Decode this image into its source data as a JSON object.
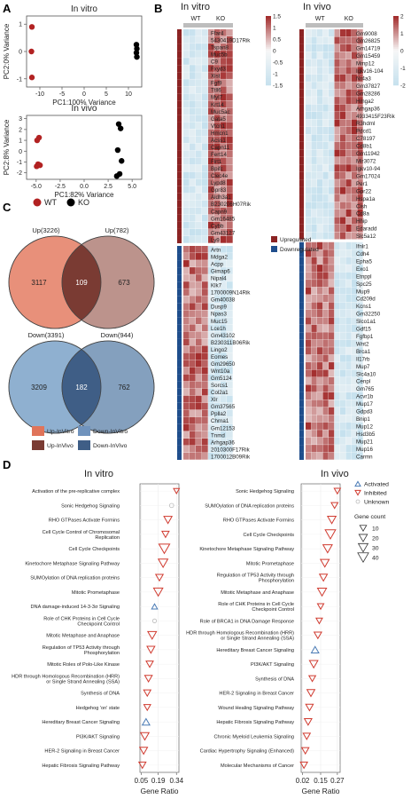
{
  "figure": {
    "panel_letters": [
      "A",
      "B",
      "C",
      "D"
    ]
  },
  "panel_a": {
    "chart_data": [
      {
        "type": "scatter",
        "title": "In vitro",
        "xlabel": "PC1:100% Variance",
        "ylabel": "PC2:0% Variance",
        "xticks": [
          "-10",
          "-5",
          "0",
          "5",
          "10"
        ],
        "yticks": [
          "-1",
          "0",
          "1"
        ],
        "xlim": [
          -13,
          13
        ],
        "ylim": [
          -1.3,
          1.3
        ],
        "series": [
          {
            "name": "WT",
            "color": "#b22222",
            "x": [
              -11.8,
              -11.9,
              -11.8
            ],
            "y": [
              0.9,
              0.0,
              -0.95
            ]
          },
          {
            "name": "KO",
            "color": "#000000",
            "x": [
              11.8,
              11.9,
              11.8,
              11.9
            ],
            "y": [
              0.25,
              0.1,
              -0.05,
              -0.2
            ]
          }
        ]
      },
      {
        "type": "scatter",
        "title": "In vivo",
        "xlabel": "PC1:82% Variance",
        "ylabel": "PC2:8% Variance",
        "xticks": [
          "-5.0",
          "-2.5",
          "0.0",
          "2.5",
          "5.0"
        ],
        "yticks": [
          "-2",
          "-1",
          "0",
          "1",
          "2",
          "3"
        ],
        "xlim": [
          -6,
          6
        ],
        "ylim": [
          -2.6,
          3.3
        ],
        "series": [
          {
            "name": "WT",
            "color": "#b22222",
            "x": [
              -4.9,
              -4.7,
              -4.8,
              -4.95,
              -4.6
            ],
            "y": [
              1.0,
              1.25,
              -1.2,
              -1.4,
              -1.3
            ]
          },
          {
            "name": "KO",
            "color": "#000000",
            "x": [
              3.6,
              3.8,
              3.5,
              3.9,
              3.7,
              3.4
            ],
            "y": [
              2.5,
              2.1,
              0.1,
              -0.9,
              -2.1,
              -2.3
            ]
          }
        ],
        "legend": [
          {
            "label": "WT",
            "color": "#b22222"
          },
          {
            "label": "KO",
            "color": "#000000"
          }
        ]
      }
    ]
  },
  "panel_b": {
    "chart_data": [
      {
        "type": "heatmap",
        "title": "In vitro",
        "groups": [
          "WT",
          "KO"
        ],
        "colorbar_ticks": [
          "1.5",
          "1",
          "0.5",
          "0",
          "-0.5",
          "-1",
          "-1.5"
        ],
        "genes_up": [
          "Ffar4",
          "5430419D17Rik",
          "Tspan8",
          "Muc5b",
          "C9",
          "Fxyd3",
          "Xist",
          "Fgf9",
          "Ttll6",
          "Myl7",
          "Krt14",
          "Muc5ac",
          "Gata5",
          "Vtcn1",
          "Hmcn1",
          "Acss1",
          "Capn11",
          "Fert14",
          "Flrt1",
          "Bpifc",
          "Clec4e",
          "Lypd8",
          "Gpr83",
          "Aldh3a1",
          "B230206H07Rik",
          "Capn9",
          "Gm16485",
          "Cybb",
          "Gm43127",
          "Ly9"
        ],
        "genes_down": [
          "Artn",
          "Mdga2",
          "Acpp",
          "Gimap6",
          "Nipal4",
          "Klk7",
          "1700009N14Rik",
          "Gm40038",
          "Dusp9",
          "Npas3",
          "Muc15",
          "Lce1h",
          "Gm43102",
          "B230311B06Rik",
          "Lingo2",
          "Eomes",
          "Gm29650",
          "Wnt10a",
          "Gm5124",
          "Sorcs1",
          "Col2a1",
          "Xlr",
          "Gm37565",
          "Pplla2",
          "Chrna1",
          "Gm12153",
          "Tnmd",
          "Arhgap36",
          "2010300F17Rik",
          "1700012B09Rik"
        ]
      },
      {
        "type": "heatmap",
        "title": "In vivo",
        "groups": [
          "WT",
          "KO"
        ],
        "colorbar_ticks": [
          "2",
          "1",
          "0",
          "-1",
          "-2"
        ],
        "genes_up": [
          "Gm9008",
          "Gm26825",
          "Gm14719",
          "Gm15459",
          "Mmp12",
          "Igkv16-104",
          "Nr4a3",
          "Gm37827",
          "Gm28286",
          "Hmga2",
          "Arhgap36",
          "4933415F23Rik",
          "R3hdml",
          "Pdcd1",
          "C78197",
          "Cd8b1",
          "Gm11942",
          "Mir3072",
          "Igkv10-94",
          "Gm17024",
          "Per1",
          "Gpr22",
          "Hspa1a",
          "Cish",
          "Cd8a",
          "Hhip",
          "Edaradd",
          "Slc5a12"
        ],
        "genes_down": [
          "Ifnlr1",
          "Cdh4",
          "Epha5",
          "Exo1",
          "Etnppl",
          "Spc25",
          "Mup9",
          "Cd209d",
          "Kcns1",
          "Gm32250",
          "Slco1a1",
          "Gdf15",
          "Fgfbp1",
          "Wnt2",
          "Brca1",
          "Il17rb",
          "Mup7",
          "Slc4a10",
          "Cenpl",
          "Gm765",
          "Acvr1b",
          "Mup17",
          "Gdpd3",
          "Bnip1",
          "Mup12",
          "Hsd3b5",
          "Mup21",
          "Mup16",
          "Carmn"
        ]
      }
    ],
    "legend": [
      {
        "label": "Upregulated",
        "color": "#8b2323"
      },
      {
        "label": "Downregulated",
        "color": "#1f4e8c"
      }
    ]
  },
  "panel_c": {
    "venn_up": {
      "left_label": "Up(3226)",
      "right_label": "Up(782)",
      "left_only": "3117",
      "both": "109",
      "right_only": "673",
      "left_color": "#e8907a",
      "right_color": "#b08078"
    },
    "venn_down": {
      "left_label": "Down(3391)",
      "right_label": "Down(944)",
      "left_only": "3209",
      "both": "182",
      "right_only": "762",
      "left_color": "#8fb0d0",
      "right_color": "#6f8fb3"
    },
    "legend": [
      {
        "label": "Up-InVitro",
        "color": "#e0745a"
      },
      {
        "label": "Down-InVitro",
        "color": "#7093bd"
      },
      {
        "label": "Up-InVivo",
        "color": "#7a3b33"
      },
      {
        "label": "Down-InVivo",
        "color": "#3f5e86"
      }
    ]
  },
  "panel_d": {
    "chart_data": [
      {
        "type": "scatter",
        "title": "In vitro",
        "xlabel": "Gene Ratio",
        "xticks": [
          "0.05",
          "0.19",
          "0.34"
        ],
        "xlim": [
          0.04,
          0.36
        ],
        "categories": [
          "Activation of the pre-replicative complex",
          "Sonic Hedgehog Signaling",
          "RHO GTPases Activate Formins",
          "Cell Cycle Control of Chromosomal Replication",
          "Cell Cycle Checkpoints",
          "Kinetochore Metaphase Signaling Pathway",
          "SUMOylation of DNA replication proteins",
          "Mitotic Prometaphase",
          "DNA damage-induced 14-3-3σ Signaling",
          "Role of CHK Proteins in Cell Cycle Checkpoint Control",
          "Mitotic Metaphase and Anaphase",
          "Regulation of TP53 Activity through Phosphorylation",
          "Mitotic Roles of Polo-Like Kinase",
          "HDR through Homologous Recombination (HRR) or Single Strand Annealing (SSA)",
          "Synthesis of DNA",
          "Hedgehog 'on' state",
          "Hereditary Breast Cancer Signaling",
          "PI3K/AKT Signaling",
          "HER-2 Signaling in Breast Cancer",
          "Hepatic Fibrosis Signaling Pathway"
        ],
        "x": [
          0.34,
          0.3,
          0.27,
          0.25,
          0.24,
          0.23,
          0.2,
          0.19,
          0.16,
          0.16,
          0.14,
          0.13,
          0.12,
          0.11,
          0.1,
          0.1,
          0.09,
          0.08,
          0.07,
          0.06
        ],
        "size": [
          6,
          8,
          18,
          12,
          40,
          28,
          14,
          26,
          6,
          6,
          22,
          16,
          12,
          14,
          12,
          10,
          14,
          20,
          16,
          12
        ],
        "status": [
          "Inhibited",
          "Unknown",
          "Inhibited",
          "Inhibited",
          "Inhibited",
          "Inhibited",
          "Inhibited",
          "Inhibited",
          "Activated",
          "Unknown",
          "Inhibited",
          "Inhibited",
          "Inhibited",
          "Inhibited",
          "Inhibited",
          "Inhibited",
          "Activated",
          "Inhibited",
          "Inhibited",
          "Inhibited"
        ]
      },
      {
        "type": "scatter",
        "title": "In vivo",
        "xlabel": "Gene Ratio",
        "xticks": [
          "0.02",
          "0.15",
          "0.27"
        ],
        "xlim": [
          0.01,
          0.29
        ],
        "categories": [
          "Sonic Hedgehog Signaling",
          "SUMOylation of DNA replication proteins",
          "RHO GTPases Activate Formins",
          "Cell Cycle Checkpoints",
          "Kinetochore Metaphase Signaling Pathway",
          "Mitotic Prometaphase",
          "Regulation of TP53 Activity through Phosphorylation",
          "Mitotic Metaphase and Anaphase",
          "Role of CHK Proteins in Cell Cycle Checkpoint Control",
          "Role of BRCA1 in DNA Damage Response",
          "HDR through Homologous Recombination (HRR) or Single Strand Annealing (SSA)",
          "Hereditary Breast Cancer Signaling",
          "PI3K/AKT Signaling",
          "Synthesis of DNA",
          "HER-2 Signaling in Breast Cancer",
          "Wound Healing Signaling Pathway",
          "Hepatic Fibrosis Signaling Pathway",
          "Chronic Myeloid Leukemia Signaling",
          "Cardiac Hypertrophy Signaling (Enhanced)",
          "Molecular Mechanisms of Cancer"
        ],
        "x": [
          0.27,
          0.25,
          0.23,
          0.22,
          0.2,
          0.18,
          0.17,
          0.16,
          0.15,
          0.14,
          0.13,
          0.11,
          0.1,
          0.09,
          0.08,
          0.07,
          0.06,
          0.05,
          0.04,
          0.03
        ],
        "size": [
          8,
          10,
          20,
          36,
          26,
          22,
          16,
          24,
          8,
          8,
          14,
          14,
          20,
          10,
          16,
          14,
          14,
          12,
          12,
          12
        ],
        "status": [
          "Inhibited",
          "Inhibited",
          "Inhibited",
          "Inhibited",
          "Inhibited",
          "Inhibited",
          "Inhibited",
          "Inhibited",
          "Inhibited",
          "Inhibited",
          "Inhibited",
          "Activated",
          "Inhibited",
          "Inhibited",
          "Inhibited",
          "Inhibited",
          "Inhibited",
          "Inhibited",
          "Inhibited",
          "Inhibited"
        ]
      }
    ],
    "legend_status": [
      {
        "label": "Activated",
        "color": "#4a7bb5"
      },
      {
        "label": "Inhibited",
        "color": "#d03a2f"
      },
      {
        "label": "Unknown",
        "color": "#bbbbbb"
      }
    ],
    "legend_size_title": "Gene count",
    "legend_size": [
      "10",
      "20",
      "30",
      "40"
    ]
  }
}
